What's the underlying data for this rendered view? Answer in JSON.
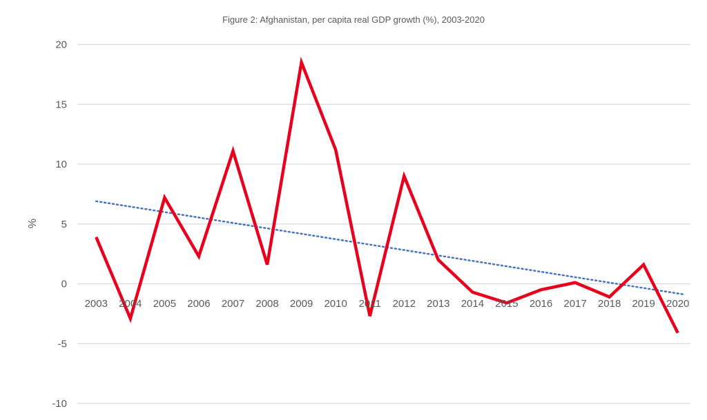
{
  "chart_data": {
    "type": "line",
    "title": "Figure 2: Afghanistan, per capita real GDP growth (%), 2003-2020",
    "xlabel": "",
    "ylabel": "%",
    "categories": [
      "2003",
      "2004",
      "2005",
      "2006",
      "2007",
      "2008",
      "2009",
      "2010",
      "2011",
      "2012",
      "2013",
      "2014",
      "2015",
      "2016",
      "2017",
      "2018",
      "2019",
      "2020"
    ],
    "series": [
      {
        "values": [
          3.9,
          -2.9,
          7.2,
          2.3,
          11.1,
          1.6,
          18.5,
          11.2,
          -2.7,
          9.0,
          2.0,
          -0.7,
          -1.6,
          -0.5,
          0.1,
          -1.1,
          1.6,
          -4.1
        ],
        "color": "#e8001c",
        "style": "solid"
      }
    ],
    "trendline": {
      "type": "linear",
      "start": 6.9,
      "end": -0.75,
      "color": "#4472c4",
      "style": "dotted"
    },
    "ylim": [
      -10,
      20
    ],
    "yticks": [
      "20",
      "15",
      "10",
      "5",
      "0",
      "-5",
      "-10"
    ],
    "grid": true,
    "legend": "none"
  }
}
